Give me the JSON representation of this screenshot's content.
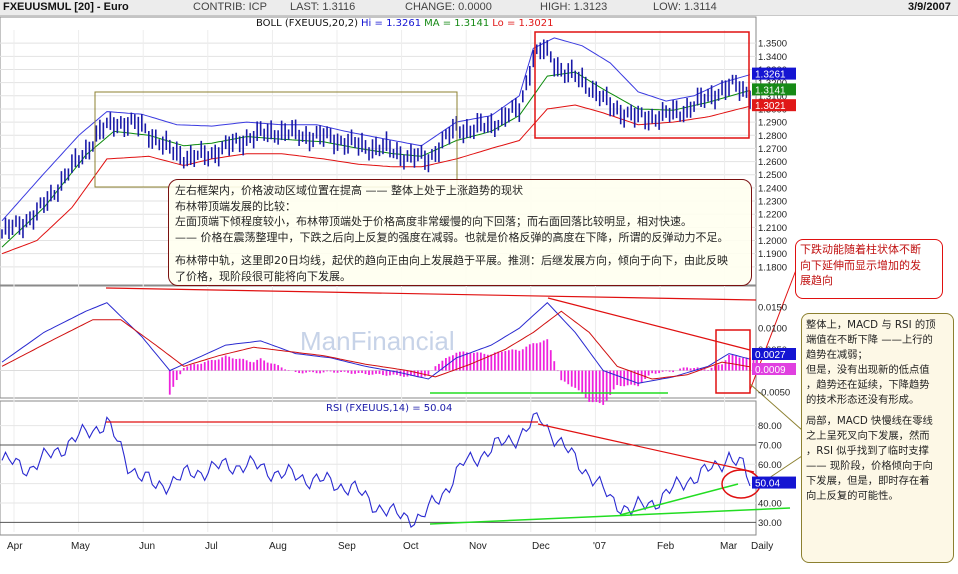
{
  "header": {
    "symbol": "FXEUUSMUL [20] - Euro",
    "contrib": "CONTRIB: ICP",
    "last": "LAST: 1.3116",
    "change": "CHANGE: 0.0000",
    "high": "HIGH: 1.3123",
    "low": "LOW: 1.3114",
    "date": "3/9/2007"
  },
  "watermark": "ManFinancial",
  "colors": {
    "price": "#1a1aa8",
    "upper_band": "#3a3ae0",
    "ma": "#0a8a0a",
    "lower_band": "#e01010",
    "macd": "#2a2ad0",
    "signal": "#d01010",
    "histogram": "#ee22dd",
    "rsi": "#2a2ad0",
    "annotation_red": "#e01010",
    "annotation_green": "#22dd22",
    "annotation_olive": "#8c8030",
    "note_border": "#7a1010",
    "note_bg": "#fffff0",
    "note_olive_bg": "#fdf8e6",
    "tag_blue": "#1414d2",
    "tag_green": "#168a16",
    "tag_red": "#e01818",
    "tag_magenta": "#e040e0"
  },
  "chart_data": [
    {
      "type": "line",
      "panel": "price",
      "title": "BOLL (FXEUUS,20,2)",
      "legend": [
        {
          "name": "Hi",
          "value": "1.3261",
          "color": "#1414d2"
        },
        {
          "name": "MA",
          "value": "1.3141",
          "color": "#168a16"
        },
        {
          "name": "Lo",
          "value": "1.3021",
          "color": "#e01818"
        }
      ],
      "legend_labels": {
        "hi": "Hi = 1.3261",
        "ma": "MA = 1.3141",
        "lo": "Lo = 1.3021"
      },
      "ylim": [
        1.17,
        1.36
      ],
      "yticks": [
        "1.3500",
        "1.3400",
        "1.3300",
        "1.3200",
        "1.3100",
        "1.3000",
        "1.2900",
        "1.2800",
        "1.2700",
        "1.2600",
        "1.2500",
        "1.2400",
        "1.2300",
        "1.2200",
        "1.2100",
        "1.2000",
        "1.1900",
        "1.1800"
      ],
      "price_path": [
        [
          0,
          1.205
        ],
        [
          10,
          1.22
        ],
        [
          20,
          1.255
        ],
        [
          28,
          1.282
        ],
        [
          32,
          1.29
        ],
        [
          40,
          1.287
        ],
        [
          46,
          1.272
        ],
        [
          54,
          1.262
        ],
        [
          62,
          1.268
        ],
        [
          70,
          1.278
        ],
        [
          78,
          1.283
        ],
        [
          86,
          1.28
        ],
        [
          94,
          1.278
        ],
        [
          102,
          1.272
        ],
        [
          110,
          1.27
        ],
        [
          116,
          1.264
        ],
        [
          122,
          1.262
        ],
        [
          126,
          1.274
        ],
        [
          130,
          1.286
        ],
        [
          134,
          1.284
        ],
        [
          140,
          1.288
        ],
        [
          148,
          1.3
        ],
        [
          152,
          1.34
        ],
        [
          155,
          1.345
        ],
        [
          160,
          1.33
        ],
        [
          168,
          1.318
        ],
        [
          174,
          1.302
        ],
        [
          182,
          1.293
        ],
        [
          190,
          1.295
        ],
        [
          196,
          1.3
        ],
        [
          204,
          1.312
        ],
        [
          210,
          1.318
        ],
        [
          214,
          1.312
        ]
      ],
      "upper_band": [
        [
          0,
          1.215
        ],
        [
          10,
          1.245
        ],
        [
          22,
          1.28
        ],
        [
          30,
          1.298
        ],
        [
          40,
          1.296
        ],
        [
          50,
          1.288
        ],
        [
          60,
          1.287
        ],
        [
          70,
          1.29
        ],
        [
          80,
          1.288
        ],
        [
          90,
          1.288
        ],
        [
          100,
          1.282
        ],
        [
          110,
          1.277
        ],
        [
          120,
          1.272
        ],
        [
          130,
          1.29
        ],
        [
          140,
          1.295
        ],
        [
          148,
          1.31
        ],
        [
          152,
          1.346
        ],
        [
          158,
          1.354
        ],
        [
          166,
          1.348
        ],
        [
          174,
          1.335
        ],
        [
          182,
          1.313
        ],
        [
          190,
          1.306
        ],
        [
          198,
          1.31
        ],
        [
          206,
          1.32
        ],
        [
          214,
          1.326
        ]
      ],
      "middle_band": [
        [
          0,
          1.195
        ],
        [
          12,
          1.225
        ],
        [
          24,
          1.265
        ],
        [
          32,
          1.283
        ],
        [
          42,
          1.28
        ],
        [
          52,
          1.272
        ],
        [
          60,
          1.274
        ],
        [
          70,
          1.279
        ],
        [
          80,
          1.277
        ],
        [
          92,
          1.275
        ],
        [
          102,
          1.27
        ],
        [
          112,
          1.266
        ],
        [
          120,
          1.264
        ],
        [
          130,
          1.276
        ],
        [
          140,
          1.283
        ],
        [
          148,
          1.295
        ],
        [
          156,
          1.325
        ],
        [
          164,
          1.328
        ],
        [
          172,
          1.315
        ],
        [
          182,
          1.3
        ],
        [
          192,
          1.299
        ],
        [
          202,
          1.305
        ],
        [
          214,
          1.3141
        ]
      ],
      "lower_band": [
        [
          0,
          1.19
        ],
        [
          10,
          1.2
        ],
        [
          20,
          1.225
        ],
        [
          30,
          1.262
        ],
        [
          42,
          1.264
        ],
        [
          52,
          1.257
        ],
        [
          60,
          1.262
        ],
        [
          70,
          1.266
        ],
        [
          80,
          1.266
        ],
        [
          92,
          1.262
        ],
        [
          102,
          1.258
        ],
        [
          112,
          1.256
        ],
        [
          120,
          1.256
        ],
        [
          130,
          1.262
        ],
        [
          140,
          1.27
        ],
        [
          148,
          1.276
        ],
        [
          156,
          1.3
        ],
        [
          164,
          1.303
        ],
        [
          172,
          1.297
        ],
        [
          182,
          1.288
        ],
        [
          192,
          1.29
        ],
        [
          202,
          1.294
        ],
        [
          214,
          1.3021
        ]
      ],
      "price_tags": [
        "1.3261",
        "1.3141",
        "1.3021"
      ]
    },
    {
      "type": "line",
      "panel": "macd",
      "ylim": [
        -0.006,
        0.019
      ],
      "yticks": [
        "0.0150",
        "0.0100",
        "0.0050",
        "-0.0050"
      ],
      "macd_path": [
        [
          0,
          0.002
        ],
        [
          12,
          0.009
        ],
        [
          24,
          0.014
        ],
        [
          30,
          0.016
        ],
        [
          40,
          0.008
        ],
        [
          48,
          0.0
        ],
        [
          56,
          0.003
        ],
        [
          64,
          0.006
        ],
        [
          74,
          0.007
        ],
        [
          84,
          0.004
        ],
        [
          94,
          0.003
        ],
        [
          104,
          0.001
        ],
        [
          114,
          -0.0005
        ],
        [
          122,
          -0.002
        ],
        [
          130,
          0.003
        ],
        [
          140,
          0.006
        ],
        [
          148,
          0.01
        ],
        [
          156,
          0.016
        ],
        [
          164,
          0.009
        ],
        [
          172,
          0.0
        ],
        [
          182,
          -0.003
        ],
        [
          192,
          -0.0015
        ],
        [
          202,
          0.001
        ],
        [
          208,
          0.004
        ],
        [
          214,
          0.0027
        ]
      ],
      "signal_path": [
        [
          0,
          0.001
        ],
        [
          14,
          0.007
        ],
        [
          26,
          0.012
        ],
        [
          34,
          0.012
        ],
        [
          44,
          0.006
        ],
        [
          52,
          0.001
        ],
        [
          62,
          0.0035
        ],
        [
          72,
          0.0055
        ],
        [
          82,
          0.0045
        ],
        [
          92,
          0.0035
        ],
        [
          104,
          0.0015
        ],
        [
          116,
          0.0
        ],
        [
          124,
          -0.0015
        ],
        [
          134,
          0.0015
        ],
        [
          144,
          0.005
        ],
        [
          152,
          0.009
        ],
        [
          160,
          0.014
        ],
        [
          168,
          0.009
        ],
        [
          176,
          0.001
        ],
        [
          186,
          -0.002
        ],
        [
          196,
          -0.001
        ],
        [
          206,
          0.002
        ],
        [
          214,
          0.0009
        ]
      ],
      "histogram_range": [
        48,
        216
      ],
      "value_tags": [
        "0.0027",
        "0.0009"
      ]
    },
    {
      "type": "line",
      "panel": "rsi",
      "title": "RSI (FXEUUS,14)",
      "legend_label": "RSI (FXEUUS,14) = 50.04",
      "value": "50.04",
      "ylim": [
        25,
        86
      ],
      "yticks": [
        "80.00",
        "70.00",
        "60.00",
        "50.00",
        "40.00",
        "30.00"
      ],
      "rsi_path": [
        [
          0,
          62
        ],
        [
          8,
          58
        ],
        [
          14,
          65
        ],
        [
          20,
          72
        ],
        [
          30,
          82
        ],
        [
          36,
          60
        ],
        [
          44,
          48
        ],
        [
          52,
          54
        ],
        [
          60,
          58
        ],
        [
          70,
          60
        ],
        [
          80,
          55
        ],
        [
          90,
          52
        ],
        [
          100,
          48
        ],
        [
          106,
          40
        ],
        [
          112,
          34
        ],
        [
          120,
          32
        ],
        [
          126,
          45
        ],
        [
          132,
          60
        ],
        [
          140,
          68
        ],
        [
          148,
          75
        ],
        [
          154,
          84
        ],
        [
          160,
          70
        ],
        [
          168,
          55
        ],
        [
          174,
          42
        ],
        [
          180,
          36
        ],
        [
          188,
          42
        ],
        [
          196,
          52
        ],
        [
          204,
          58
        ],
        [
          208,
          65
        ],
        [
          212,
          58
        ],
        [
          214,
          50
        ]
      ],
      "value_tag": "50.04"
    }
  ],
  "x_axis": {
    "labels": [
      "Apr",
      "May",
      "Jun",
      "Jul",
      "Aug",
      "Sep",
      "Oct",
      "Nov",
      "Dec",
      "'07",
      "Feb",
      "Mar",
      "Daily"
    ]
  },
  "notes": {
    "main": [
      "左右框架内，价格波动区域位置在提高 —— 整体上处于上涨趋势的现状",
      "布林带顶端发展的比较：",
      "左面顶端下倾程度较小，布林带顶端处于价格高度非常缓慢的向下回落；而右面回落比较明显，相对快速。",
      "—— 价格在震荡整理中，下跌之后向上反复的强度在减弱。也就是价格反弹的高度在下降，所谓的反弹动力不足。",
      "",
      "布林带中轨，这里即20日均线，起伏的趋向正由向上发展趋于平展。推测：后继发展方向，倾向于向下，由此反映",
      "了价格，现阶段很可能将向下发展。"
    ],
    "volume": [
      "下跌动能随着柱状体不断",
      "向下延伸而显示增加的发",
      "展趋向"
    ],
    "side": [
      "整体上，MACD 与 RSI 的顶",
      "端值在不断下降 ——上行的",
      "趋势在减弱；",
      "但是，没有出现新的低点值",
      "，趋势还在延续，下降趋势",
      "的技术形态还没有形成。",
      "",
      "局部，MACD 快慢线在零线",
      "之上呈死叉向下发展，然而",
      "，RSI 似乎找到了临时支撑",
      "—— 现阶段，价格倾向于向",
      "下发展，但是，即时存在着",
      "向上反复的可能性。"
    ]
  }
}
